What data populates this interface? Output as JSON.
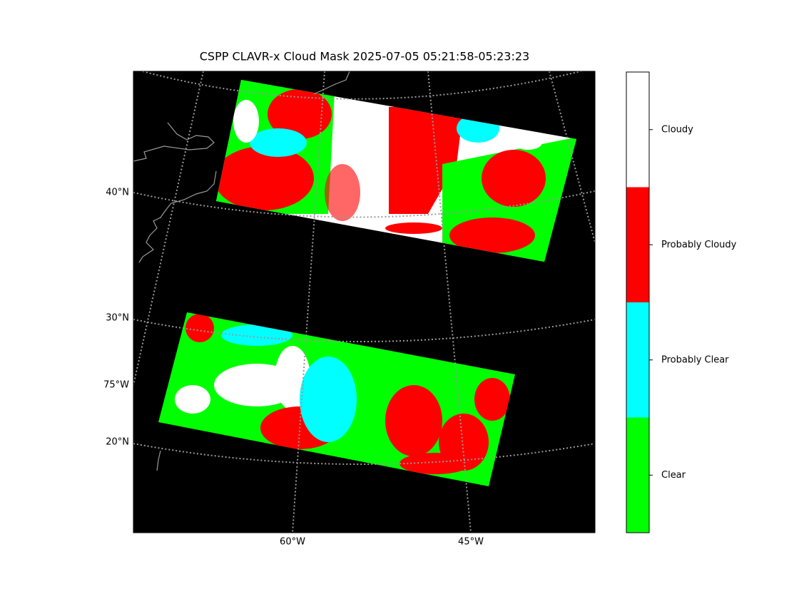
{
  "title": "CSPP CLAVR-x Cloud Mask 2025-07-05 05:21:58-05:23:23",
  "lat_labels": [
    "40°N",
    "30°N",
    "20°N"
  ],
  "lon_labels_left": [
    "75°W"
  ],
  "lon_labels_bottom": [
    "60°W",
    "45°W"
  ],
  "colorbar": {
    "classes": [
      {
        "name": "Cloudy",
        "color": "#ffffff"
      },
      {
        "name": "Probably Cloudy",
        "color": "#ff0000"
      },
      {
        "name": "Probably Clear",
        "color": "#00ffff"
      },
      {
        "name": "Clear",
        "color": "#00ff00"
      }
    ]
  }
}
